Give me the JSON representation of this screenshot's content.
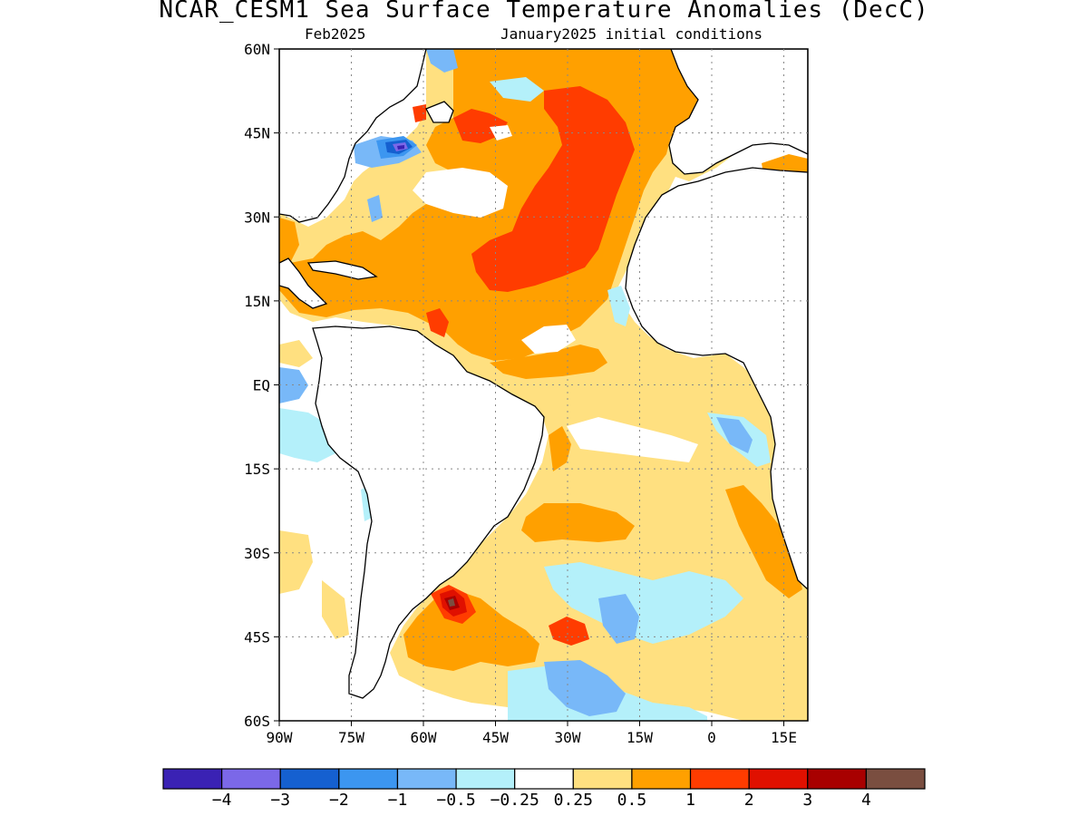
{
  "title": "NCAR_CESM1 Sea Surface Temperature Anomalies (DecC)",
  "subtitle_left": "Feb2025",
  "subtitle_right": "January2025 initial conditions",
  "map": {
    "projection": "cylindrical",
    "lon_range": [
      -90,
      20
    ],
    "lat_range": [
      -60,
      60
    ],
    "grid": "dotted",
    "lat_ticks": [
      {
        "value": 60,
        "label": "60N"
      },
      {
        "value": 45,
        "label": "45N"
      },
      {
        "value": 30,
        "label": "30N"
      },
      {
        "value": 15,
        "label": "15N"
      },
      {
        "value": 0,
        "label": "EQ"
      },
      {
        "value": -15,
        "label": "15S"
      },
      {
        "value": -30,
        "label": "30S"
      },
      {
        "value": -45,
        "label": "45S"
      },
      {
        "value": -60,
        "label": "60S"
      }
    ],
    "lon_ticks": [
      {
        "value": -90,
        "label": "90W"
      },
      {
        "value": -75,
        "label": "75W"
      },
      {
        "value": -60,
        "label": "60W"
      },
      {
        "value": -45,
        "label": "45W"
      },
      {
        "value": -30,
        "label": "30W"
      },
      {
        "value": -15,
        "label": "15W"
      },
      {
        "value": 0,
        "label": "0"
      },
      {
        "value": 15,
        "label": "15E"
      }
    ]
  },
  "colorbar": {
    "colors": [
      "#3a22b4",
      "#7b68e8",
      "#1560d0",
      "#3c96f0",
      "#78b8f8",
      "#b4f0fa",
      "#ffffff",
      "#ffe080",
      "#ffa000",
      "#ff3c00",
      "#e01000",
      "#a80000",
      "#7a4e40"
    ],
    "labels": [
      "−4",
      "−3",
      "−2",
      "−1",
      "−0.5",
      "−0.25",
      "0.25",
      "0.5",
      "1",
      "2",
      "3",
      "4"
    ]
  }
}
